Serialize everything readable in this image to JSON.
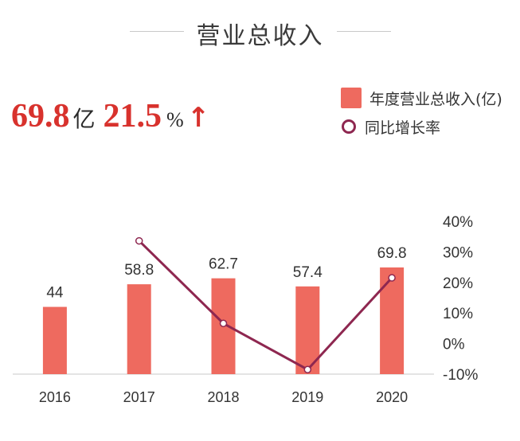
{
  "title": "营业总收入",
  "kpi": {
    "revenue_value": "69.8",
    "revenue_unit": "亿",
    "growth_value": "21.5",
    "growth_unit": "%",
    "trend_arrow": "↑"
  },
  "colors": {
    "bar": "#ee6a5f",
    "line": "#8e2750",
    "accent": "#d8322d",
    "axis": "#c9c9c9",
    "text": "#333333"
  },
  "chart_data": {
    "type": "bar",
    "title": "营业总收入",
    "categories": [
      "2016",
      "2017",
      "2018",
      "2019",
      "2020"
    ],
    "series": [
      {
        "name": "年度营业总收入(亿)",
        "type": "bar",
        "axis": "left",
        "values": [
          44,
          58.8,
          62.7,
          57.4,
          69.8
        ],
        "labels": [
          "44",
          "58.8",
          "62.7",
          "57.4",
          "69.8"
        ]
      },
      {
        "name": "同比增长率",
        "type": "line",
        "axis": "right",
        "unit": "%",
        "values": [
          null,
          33.6,
          6.6,
          -8.5,
          21.5
        ]
      }
    ],
    "left_axis": {
      "ylim": [
        0,
        100
      ],
      "visible": false
    },
    "right_axis": {
      "ylim": [
        -10,
        40
      ],
      "ticks": [
        40,
        30,
        20,
        10,
        0,
        -10
      ],
      "tick_labels": [
        "40%",
        "30%",
        "20%",
        "10%",
        "0%",
        "-10%"
      ]
    },
    "xlabel": "",
    "ylabel": "",
    "legend": "top-right",
    "grid": false
  }
}
